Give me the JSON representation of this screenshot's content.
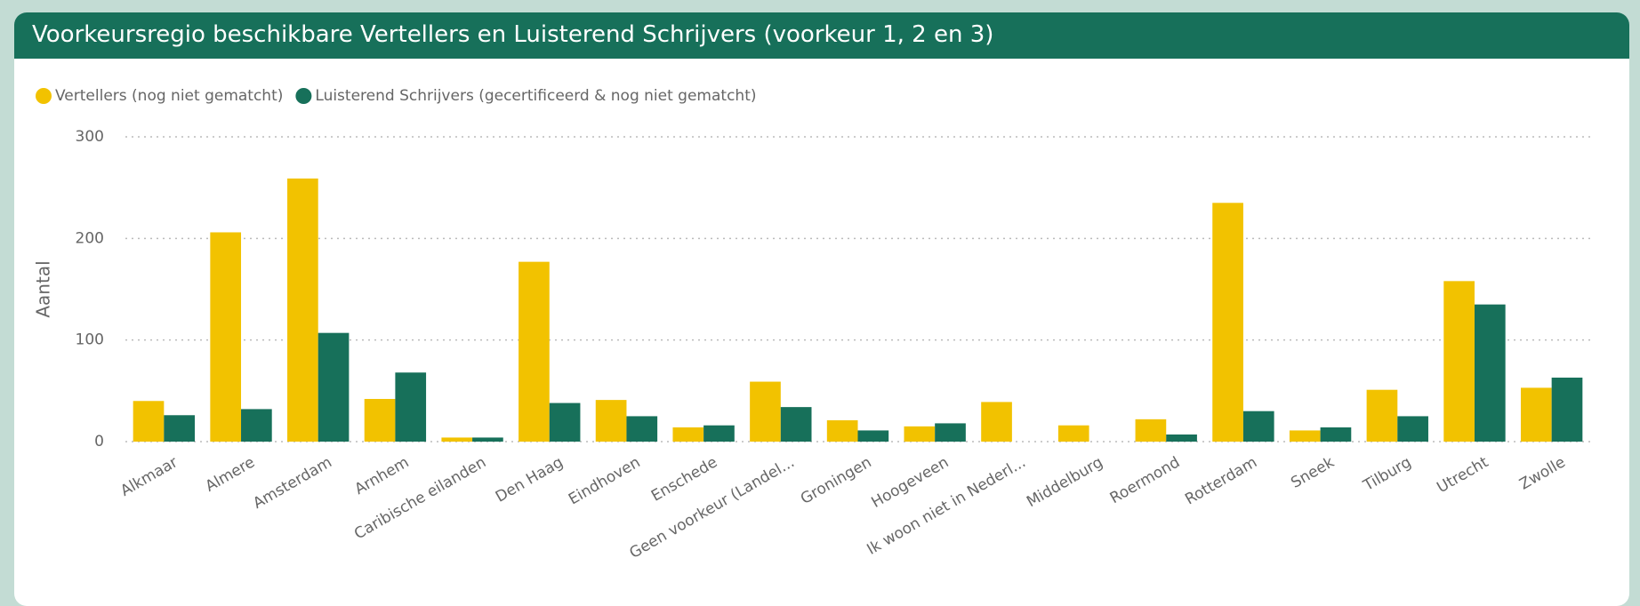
{
  "chart_data": {
    "type": "bar",
    "title": "Voorkeursregio beschikbare Vertellers en Luisterend Schrijvers (voorkeur 1, 2 en 3)",
    "y_label": "Aantal",
    "categories": [
      "Alkmaar",
      "Almere",
      "Amsterdam",
      "Arnhem",
      "Caribische eilanden",
      "Den Haag",
      "Eindhoven",
      "Enschede",
      "Geen voorkeur (Landel...",
      "Groningen",
      "Hoogeveen",
      "Ik woon niet in Nederl...",
      "Middelburg",
      "Roermond",
      "Rotterdam",
      "Sneek",
      "Tilburg",
      "Utrecht",
      "Zwolle"
    ],
    "series": [
      {
        "name": "Vertellers (nog niet gematcht)",
        "color": "#f2c200",
        "values": [
          40,
          206,
          259,
          42,
          4,
          177,
          41,
          14,
          59,
          21,
          15,
          39,
          16,
          22,
          235,
          11,
          51,
          158,
          53
        ]
      },
      {
        "name": "Luisterend Schrijvers (gecertificeerd & nog niet gematcht)",
        "color": "#17705a",
        "values": [
          26,
          32,
          107,
          68,
          4,
          38,
          25,
          16,
          34,
          11,
          18,
          null,
          null,
          7,
          30,
          14,
          25,
          135,
          63
        ]
      }
    ],
    "ylim": [
      0,
      300
    ],
    "yticks": [
      0,
      100,
      200,
      300
    ],
    "grid": true,
    "legend": "top-left"
  }
}
